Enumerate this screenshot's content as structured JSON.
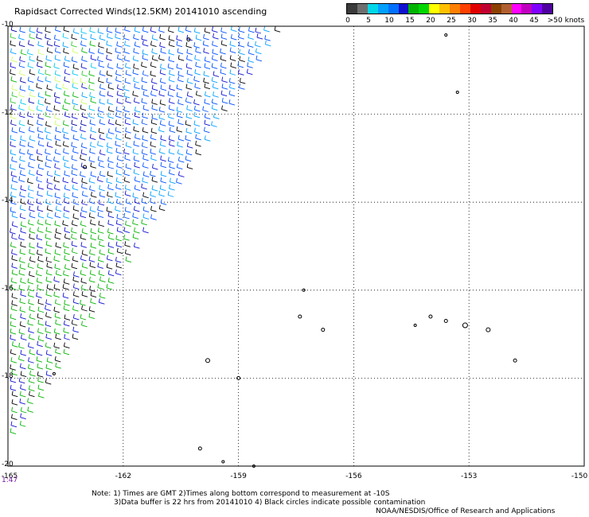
{
  "title": "Rapidsact Corrected Winds(12.5KM) 20141010 ascending",
  "legend": {
    "colors": [
      "#3a3a3a",
      "#6e6e6e",
      "#00d7e8",
      "#00a0ff",
      "#0070ff",
      "#1010d0",
      "#00b400",
      "#00d700",
      "#ffff00",
      "#ffc000",
      "#ff8000",
      "#ff4000",
      "#e00000",
      "#c00030",
      "#8b4000",
      "#b06030",
      "#ff00ff",
      "#c000c0",
      "#8000ff",
      "#5000a0"
    ],
    "ticks": [
      "0",
      "5",
      "10",
      "15",
      "20",
      "25",
      "30",
      "35",
      "40",
      "45",
      ">50 knots"
    ]
  },
  "map": {
    "lat_labels": [
      "-10",
      "-12",
      "-14",
      "-16",
      "-18",
      "-20"
    ],
    "lon_labels": [
      "-165",
      "-162",
      "-159",
      "-156",
      "-153",
      "-150"
    ],
    "time_label": "1:47",
    "lat_range": [
      -20,
      -10
    ],
    "lon_range": [
      -165,
      -150
    ],
    "grid": true
  },
  "notes": [
    "Note: 1) Times are GMT 2)Times along bottom correspond to measurement at -10S",
    "3)Data buffer is 22 hrs from 20141010 4) Black circles indicate possible contamination"
  ],
  "credit": "NOAA/NESDIS/Office of Research and Applications"
}
